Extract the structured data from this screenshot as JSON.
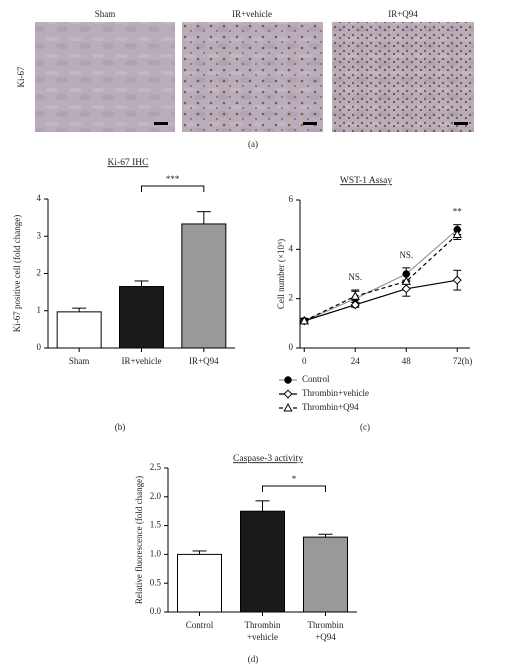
{
  "panel_a": {
    "row_label": "Ki-67",
    "columns": [
      "Sham",
      "IR+vehicle",
      "IR+Q94"
    ],
    "caption": "(a)"
  },
  "chart_data": [
    {
      "type": "bar",
      "panel": "(b)",
      "title": "Ki-67 IHC",
      "y_label": "Ki-67 positive cell (fold change)",
      "categories": [
        "Sham",
        "IR+vehicle",
        "IR+Q94"
      ],
      "values": [
        0.97,
        1.65,
        3.33
      ],
      "errors": [
        0.1,
        0.15,
        0.33
      ],
      "colors": [
        "#ffffff",
        "#1a1a1a",
        "#999999"
      ],
      "ylim": [
        0,
        4
      ],
      "yticks": [
        0,
        1,
        2,
        3,
        4
      ],
      "significance": "***"
    },
    {
      "type": "line",
      "panel": "(c)",
      "title": "WST-1 Assay",
      "y_label": "Cell number (×10⁵)",
      "x_label": "(h)",
      "x": [
        0,
        24,
        48,
        72
      ],
      "xlim": [
        -2,
        78
      ],
      "xticks": [
        0,
        24,
        48,
        72
      ],
      "ylim": [
        0,
        6
      ],
      "yticks": [
        0,
        2,
        4,
        6
      ],
      "series": [
        {
          "name": "Control",
          "color": "#999999",
          "marker": "filled-circle",
          "dashed": false,
          "values": [
            1.1,
            2.0,
            3.0,
            4.8
          ],
          "errors": [
            0.1,
            0.3,
            0.25,
            0.2
          ]
        },
        {
          "name": "Thrombin+vehicle",
          "color": "#000000",
          "marker": "open-diamond",
          "dashed": false,
          "values": [
            1.1,
            1.75,
            2.4,
            2.75
          ],
          "errors": [
            0.1,
            0.1,
            0.3,
            0.4
          ]
        },
        {
          "name": "Thrombin+Q94",
          "color": "#000000",
          "marker": "open-triangle",
          "dashed": true,
          "values": [
            1.1,
            2.1,
            2.7,
            4.6
          ],
          "errors": [
            0.1,
            0.25,
            0.3,
            0.2
          ]
        }
      ],
      "annotations": [
        {
          "text": "NS.",
          "x": 24
        },
        {
          "text": "NS.",
          "x": 48
        },
        {
          "text": "**",
          "x": 72
        }
      ]
    },
    {
      "type": "bar",
      "panel": "(d)",
      "title": "Caspase-3 activity",
      "y_label": "Relative fluorescence (fold change)",
      "categories": [
        "Control",
        [
          "Thrombin",
          "+vehicle"
        ],
        [
          "Thrombin",
          "+Q94"
        ]
      ],
      "values": [
        1.0,
        1.75,
        1.3
      ],
      "errors": [
        0.06,
        0.18,
        0.05
      ],
      "colors": [
        "#ffffff",
        "#1a1a1a",
        "#999999"
      ],
      "ylim": [
        0,
        2.5
      ],
      "yticks": [
        {
          "value": 0,
          "label": "0.0"
        },
        0.5,
        {
          "value": 1,
          "label": "1.0"
        },
        1.5,
        {
          "value": 2,
          "label": "2.0"
        },
        2.5
      ],
      "significance": "*"
    }
  ]
}
